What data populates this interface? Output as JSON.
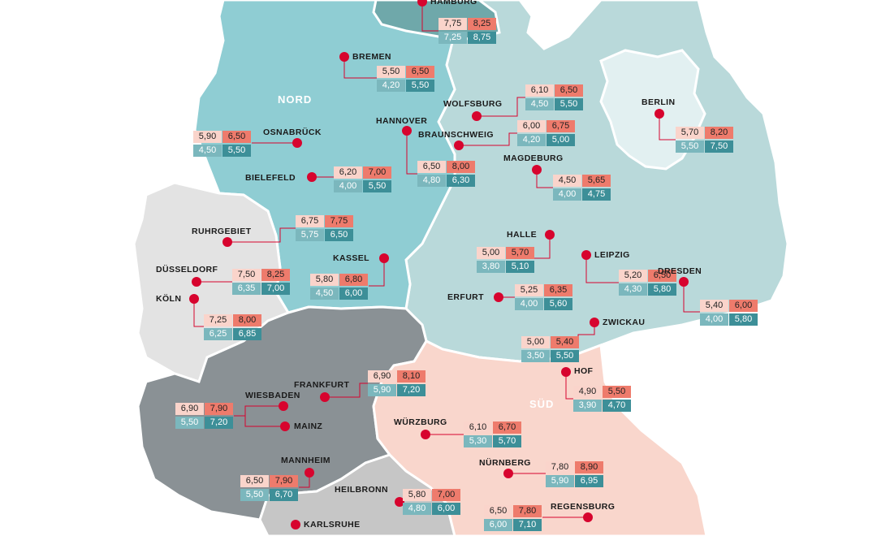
{
  "regions": {
    "nord": {
      "label": "NORD",
      "color": "#8fcdd3"
    },
    "sued": {
      "label": "SÜD",
      "color": "#f9d6cc"
    },
    "ost": {
      "color": "#b9d9da"
    },
    "west": {
      "color": "#e3e3e3"
    },
    "mitte": {
      "color": "#8a9195"
    },
    "baden": {
      "color": "#c6c6c6"
    },
    "berlin": {
      "color": "#e2f0f1"
    }
  },
  "colors": {
    "marker": "#d7042e",
    "line": "#d7042e",
    "low_a": "#fad4cb",
    "high_a": "#ee7b6c",
    "low_b": "#7bb7bd",
    "high_b": "#3d8f98"
  },
  "cities": [
    {
      "name": "HAMBURG",
      "values": [
        "7,75",
        "8,25",
        "7,25",
        "8,75"
      ]
    },
    {
      "name": "BREMEN",
      "values": [
        "5,50",
        "6,50",
        "4,20",
        "5,50"
      ]
    },
    {
      "name": "WOLFSBURG",
      "values": [
        "6,10",
        "6,50",
        "4,50",
        "5,50"
      ]
    },
    {
      "name": "BERLIN",
      "values": [
        "5,70",
        "8,20",
        "5,50",
        "7,50"
      ]
    },
    {
      "name": "OSNABRÜCK",
      "values": [
        "5,90",
        "6,50",
        "4,50",
        "5,50"
      ]
    },
    {
      "name": "HANNOVER",
      "values": [
        "6,50",
        "8,00",
        "4,80",
        "6,30"
      ]
    },
    {
      "name": "BRAUNSCHWEIG",
      "values": [
        "6,00",
        "6,75",
        "4,20",
        "5,00"
      ]
    },
    {
      "name": "MAGDEBURG",
      "values": [
        "4,50",
        "5,65",
        "4,00",
        "4,75"
      ]
    },
    {
      "name": "BIELEFELD",
      "values": [
        "6,20",
        "7,00",
        "4,00",
        "5,50"
      ]
    },
    {
      "name": "RUHRGEBIET",
      "values": [
        "6,75",
        "7,75",
        "5,75",
        "6,50"
      ]
    },
    {
      "name": "HALLE",
      "values": [
        "5,00",
        "5,70",
        "3,80",
        "5,10"
      ]
    },
    {
      "name": "DÜSSELDORF",
      "values": [
        "7,50",
        "8,25",
        "6,35",
        "7,00"
      ]
    },
    {
      "name": "KASSEL",
      "values": [
        "5,80",
        "6,80",
        "4,50",
        "6,00"
      ]
    },
    {
      "name": "LEIPZIG",
      "values": [
        "5,20",
        "6,50",
        "4,30",
        "5,80"
      ]
    },
    {
      "name": "DRESDEN",
      "values": [
        "5,40",
        "6,00",
        "4,00",
        "5,80"
      ]
    },
    {
      "name": "KÖLN",
      "values": [
        "7,25",
        "8,00",
        "6,25",
        "6,85"
      ]
    },
    {
      "name": "ERFURT",
      "values": [
        "5,25",
        "6,35",
        "4,00",
        "5,60"
      ]
    },
    {
      "name": "ZWICKAU",
      "values": [
        "5,00",
        "5,40",
        "3,50",
        "5,50"
      ]
    },
    {
      "name": "HOF",
      "values": [
        "4,90",
        "5,50",
        "3,90",
        "4,70"
      ]
    },
    {
      "name": "FRANKFURT",
      "values": [
        "6,90",
        "8,10",
        "5,90",
        "7,20"
      ]
    },
    {
      "name": "WIESBADEN",
      "values": [
        "6,90",
        "7,90",
        "5,50",
        "7,20"
      ]
    },
    {
      "name": "MAINZ"
    },
    {
      "name": "WÜRZBURG",
      "values": [
        "6,10",
        "6,70",
        "5,30",
        "5,70"
      ]
    },
    {
      "name": "MANNHEIM",
      "values": [
        "6,50",
        "7,90",
        "5,50",
        "6,70"
      ]
    },
    {
      "name": "NÜRNBERG",
      "values": [
        "7,80",
        "8,90",
        "5,90",
        "6,95"
      ]
    },
    {
      "name": "HEILBRONN",
      "values": [
        "5,80",
        "7,00",
        "4,80",
        "6,00"
      ]
    },
    {
      "name": "REGENSBURG",
      "values": [
        "6,50",
        "7,80",
        "6,00",
        "7,10"
      ]
    },
    {
      "name": "KARLSRUHE"
    }
  ]
}
